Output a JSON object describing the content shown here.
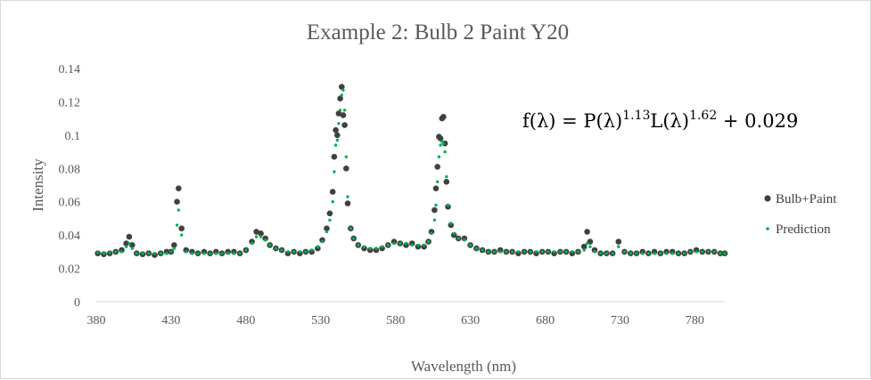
{
  "chart_data": {
    "type": "scatter",
    "title": "Example 2: Bulb 2 Paint Y20",
    "xlabel": "Wavelength (nm)",
    "ylabel": "Intensity",
    "xlim": [
      380,
      800
    ],
    "ylim": [
      0,
      0.14
    ],
    "xticks": [
      380,
      430,
      480,
      530,
      580,
      630,
      680,
      730,
      780
    ],
    "yticks": [
      0,
      0.02,
      0.04,
      0.06,
      0.08,
      0.1,
      0.12,
      0.14
    ],
    "ytick_labels": [
      "0",
      "0.02",
      "0.04",
      "0.06",
      "0.08",
      "0.1",
      "0.12",
      "0.14"
    ],
    "legend_position": "right",
    "grid": false,
    "annotation": {
      "base": "f(λ) = P(λ)",
      "exp1": "1.13",
      "mid": "L(λ)",
      "exp2": "1.62",
      "tail": " + 0.029"
    },
    "series": [
      {
        "name": "Bulb+Paint",
        "color": "#404040",
        "marker": "large-dot",
        "points": [
          [
            381,
            0.029
          ],
          [
            385,
            0.0285
          ],
          [
            389,
            0.029
          ],
          [
            393,
            0.03
          ],
          [
            397,
            0.031
          ],
          [
            400,
            0.035
          ],
          [
            402,
            0.039
          ],
          [
            404,
            0.034
          ],
          [
            407,
            0.029
          ],
          [
            411,
            0.0285
          ],
          [
            415,
            0.029
          ],
          [
            419,
            0.028
          ],
          [
            423,
            0.029
          ],
          [
            427,
            0.03
          ],
          [
            430,
            0.03
          ],
          [
            432,
            0.034
          ],
          [
            434,
            0.06
          ],
          [
            435,
            0.068
          ],
          [
            437,
            0.044
          ],
          [
            440,
            0.031
          ],
          [
            444,
            0.03
          ],
          [
            448,
            0.029
          ],
          [
            452,
            0.03
          ],
          [
            456,
            0.029
          ],
          [
            460,
            0.03
          ],
          [
            464,
            0.029
          ],
          [
            468,
            0.03
          ],
          [
            472,
            0.03
          ],
          [
            476,
            0.029
          ],
          [
            480,
            0.031
          ],
          [
            484,
            0.036
          ],
          [
            487,
            0.042
          ],
          [
            490,
            0.041
          ],
          [
            493,
            0.038
          ],
          [
            496,
            0.034
          ],
          [
            500,
            0.032
          ],
          [
            504,
            0.031
          ],
          [
            508,
            0.029
          ],
          [
            512,
            0.03
          ],
          [
            516,
            0.029
          ],
          [
            520,
            0.03
          ],
          [
            524,
            0.03
          ],
          [
            528,
            0.032
          ],
          [
            531,
            0.037
          ],
          [
            534,
            0.044
          ],
          [
            536,
            0.053
          ],
          [
            538,
            0.066
          ],
          [
            539,
            0.087
          ],
          [
            540,
            0.103
          ],
          [
            541,
            0.1
          ],
          [
            542,
            0.113
          ],
          [
            543,
            0.122
          ],
          [
            544,
            0.129
          ],
          [
            545,
            0.112
          ],
          [
            546,
            0.106
          ],
          [
            547,
            0.08
          ],
          [
            548,
            0.059
          ],
          [
            550,
            0.044
          ],
          [
            552,
            0.038
          ],
          [
            555,
            0.034
          ],
          [
            559,
            0.032
          ],
          [
            563,
            0.031
          ],
          [
            567,
            0.031
          ],
          [
            571,
            0.032
          ],
          [
            575,
            0.034
          ],
          [
            579,
            0.036
          ],
          [
            583,
            0.035
          ],
          [
            587,
            0.034
          ],
          [
            591,
            0.035
          ],
          [
            595,
            0.033
          ],
          [
            599,
            0.033
          ],
          [
            602,
            0.036
          ],
          [
            604,
            0.042
          ],
          [
            606,
            0.055
          ],
          [
            607,
            0.068
          ],
          [
            608,
            0.081
          ],
          [
            609,
            0.099
          ],
          [
            610,
            0.098
          ],
          [
            611,
            0.11
          ],
          [
            612,
            0.111
          ],
          [
            613,
            0.095
          ],
          [
            614,
            0.072
          ],
          [
            615,
            0.057
          ],
          [
            617,
            0.046
          ],
          [
            619,
            0.04
          ],
          [
            622,
            0.038
          ],
          [
            626,
            0.038
          ],
          [
            630,
            0.034
          ],
          [
            634,
            0.032
          ],
          [
            638,
            0.031
          ],
          [
            642,
            0.03
          ],
          [
            646,
            0.03
          ],
          [
            650,
            0.031
          ],
          [
            654,
            0.03
          ],
          [
            658,
            0.03
          ],
          [
            662,
            0.029
          ],
          [
            666,
            0.03
          ],
          [
            670,
            0.03
          ],
          [
            674,
            0.029
          ],
          [
            678,
            0.03
          ],
          [
            682,
            0.03
          ],
          [
            686,
            0.029
          ],
          [
            690,
            0.03
          ],
          [
            694,
            0.03
          ],
          [
            698,
            0.029
          ],
          [
            702,
            0.03
          ],
          [
            706,
            0.033
          ],
          [
            708,
            0.042
          ],
          [
            710,
            0.036
          ],
          [
            713,
            0.031
          ],
          [
            717,
            0.029
          ],
          [
            721,
            0.029
          ],
          [
            725,
            0.029
          ],
          [
            729,
            0.036
          ],
          [
            733,
            0.03
          ],
          [
            737,
            0.029
          ],
          [
            741,
            0.029
          ],
          [
            745,
            0.03
          ],
          [
            749,
            0.029
          ],
          [
            753,
            0.03
          ],
          [
            757,
            0.029
          ],
          [
            761,
            0.03
          ],
          [
            765,
            0.03
          ],
          [
            769,
            0.029
          ],
          [
            773,
            0.029
          ],
          [
            777,
            0.03
          ],
          [
            781,
            0.031
          ],
          [
            785,
            0.03
          ],
          [
            789,
            0.03
          ],
          [
            793,
            0.03
          ],
          [
            797,
            0.029
          ],
          [
            800,
            0.029
          ]
        ]
      },
      {
        "name": "Prediction",
        "color": "#00b050",
        "marker": "small-dot",
        "points": [
          [
            381,
            0.0295
          ],
          [
            385,
            0.029
          ],
          [
            389,
            0.0295
          ],
          [
            393,
            0.03
          ],
          [
            397,
            0.03
          ],
          [
            400,
            0.033
          ],
          [
            402,
            0.035
          ],
          [
            404,
            0.032
          ],
          [
            407,
            0.029
          ],
          [
            411,
            0.029
          ],
          [
            415,
            0.029
          ],
          [
            419,
            0.029
          ],
          [
            423,
            0.029
          ],
          [
            427,
            0.029
          ],
          [
            430,
            0.03
          ],
          [
            432,
            0.032
          ],
          [
            434,
            0.046
          ],
          [
            435,
            0.055
          ],
          [
            437,
            0.04
          ],
          [
            440,
            0.03
          ],
          [
            444,
            0.029
          ],
          [
            448,
            0.029
          ],
          [
            452,
            0.029
          ],
          [
            456,
            0.029
          ],
          [
            460,
            0.029
          ],
          [
            464,
            0.029
          ],
          [
            468,
            0.029
          ],
          [
            472,
            0.029
          ],
          [
            476,
            0.029
          ],
          [
            480,
            0.031
          ],
          [
            484,
            0.035
          ],
          [
            487,
            0.039
          ],
          [
            490,
            0.039
          ],
          [
            493,
            0.037
          ],
          [
            496,
            0.034
          ],
          [
            500,
            0.032
          ],
          [
            504,
            0.031
          ],
          [
            508,
            0.03
          ],
          [
            512,
            0.03
          ],
          [
            516,
            0.03
          ],
          [
            520,
            0.03
          ],
          [
            524,
            0.031
          ],
          [
            528,
            0.033
          ],
          [
            531,
            0.036
          ],
          [
            534,
            0.042
          ],
          [
            536,
            0.049
          ],
          [
            538,
            0.06
          ],
          [
            539,
            0.078
          ],
          [
            540,
            0.094
          ],
          [
            541,
            0.097
          ],
          [
            542,
            0.107
          ],
          [
            543,
            0.115
          ],
          [
            544,
            0.124
          ],
          [
            545,
            0.127
          ],
          [
            546,
            0.115
          ],
          [
            547,
            0.087
          ],
          [
            548,
            0.063
          ],
          [
            550,
            0.044
          ],
          [
            552,
            0.038
          ],
          [
            555,
            0.034
          ],
          [
            559,
            0.033
          ],
          [
            563,
            0.032
          ],
          [
            567,
            0.032
          ],
          [
            571,
            0.033
          ],
          [
            575,
            0.034
          ],
          [
            579,
            0.035
          ],
          [
            583,
            0.035
          ],
          [
            587,
            0.035
          ],
          [
            591,
            0.034
          ],
          [
            595,
            0.034
          ],
          [
            599,
            0.034
          ],
          [
            602,
            0.036
          ],
          [
            604,
            0.041
          ],
          [
            606,
            0.049
          ],
          [
            607,
            0.058
          ],
          [
            608,
            0.072
          ],
          [
            609,
            0.087
          ],
          [
            610,
            0.094
          ],
          [
            611,
            0.096
          ],
          [
            612,
            0.095
          ],
          [
            613,
            0.09
          ],
          [
            614,
            0.075
          ],
          [
            615,
            0.058
          ],
          [
            617,
            0.047
          ],
          [
            619,
            0.041
          ],
          [
            622,
            0.038
          ],
          [
            626,
            0.037
          ],
          [
            630,
            0.034
          ],
          [
            634,
            0.032
          ],
          [
            638,
            0.031
          ],
          [
            642,
            0.03
          ],
          [
            646,
            0.03
          ],
          [
            650,
            0.03
          ],
          [
            654,
            0.03
          ],
          [
            658,
            0.03
          ],
          [
            662,
            0.03
          ],
          [
            666,
            0.03
          ],
          [
            670,
            0.03
          ],
          [
            674,
            0.03
          ],
          [
            678,
            0.03
          ],
          [
            682,
            0.03
          ],
          [
            686,
            0.03
          ],
          [
            690,
            0.03
          ],
          [
            694,
            0.03
          ],
          [
            698,
            0.03
          ],
          [
            702,
            0.03
          ],
          [
            706,
            0.031
          ],
          [
            708,
            0.035
          ],
          [
            710,
            0.033
          ],
          [
            713,
            0.03
          ],
          [
            717,
            0.029
          ],
          [
            721,
            0.029
          ],
          [
            725,
            0.029
          ],
          [
            729,
            0.033
          ],
          [
            733,
            0.03
          ],
          [
            737,
            0.029
          ],
          [
            741,
            0.029
          ],
          [
            745,
            0.029
          ],
          [
            749,
            0.029
          ],
          [
            753,
            0.029
          ],
          [
            757,
            0.029
          ],
          [
            761,
            0.029
          ],
          [
            765,
            0.029
          ],
          [
            769,
            0.029
          ],
          [
            773,
            0.029
          ],
          [
            777,
            0.03
          ],
          [
            781,
            0.03
          ],
          [
            785,
            0.03
          ],
          [
            789,
            0.03
          ],
          [
            793,
            0.03
          ],
          [
            797,
            0.029
          ],
          [
            800,
            0.029
          ]
        ]
      }
    ]
  }
}
